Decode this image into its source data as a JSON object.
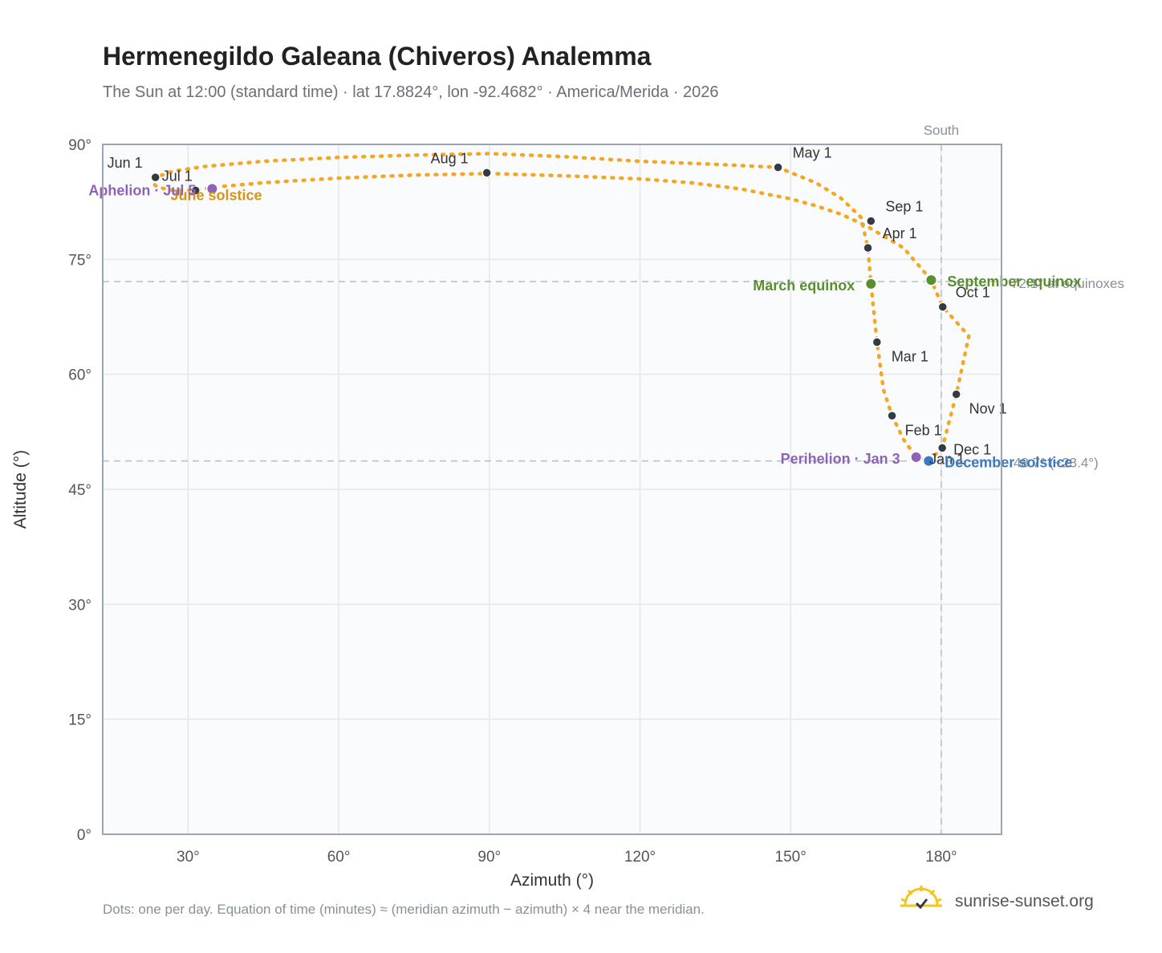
{
  "title": "Hermenegildo Galeana (Chiveros) Analemma",
  "subtitle": "The Sun at 12:00 (standard time) · lat 17.8824°, lon -92.4682° · America/Merida · 2026",
  "footnote": "Dots: one per day. Equation of time (minutes) ≈ (meridian azimuth − azimuth) × 4 near the meridian.",
  "brand": "sunrise-sunset.org",
  "colors": {
    "curve": "#f5a623",
    "month_marker": "#333a44",
    "equinox": "#5a8f2e",
    "solstice_june": "#d4951a",
    "solstice_december": "#3b7ac2",
    "apsis": "#8e63b4",
    "plot_bg": "#f9fbfd",
    "grid": "#e3e7ee",
    "reference_line": "#b4bfcc"
  },
  "chart_data": {
    "type": "scatter",
    "xlabel": "Azimuth (°)",
    "ylabel": "Altitude (°)",
    "xlim": [
      13,
      192
    ],
    "ylim": [
      0,
      90
    ],
    "xticks": [
      30,
      60,
      90,
      120,
      150,
      180
    ],
    "yticks": [
      0,
      15,
      30,
      45,
      60,
      75,
      90
    ],
    "x_tick_labels": [
      "30°",
      "60°",
      "90°",
      "120°",
      "150°",
      "180°"
    ],
    "y_tick_labels": [
      "0°",
      "15°",
      "30°",
      "45°",
      "60°",
      "75°",
      "90°"
    ],
    "grid": true,
    "meridian_azimuth": 180,
    "meridian_label": "South",
    "daily_path": [
      [
        177.5,
        48.7
      ],
      [
        180.2,
        50.4
      ],
      [
        183.0,
        57.4
      ],
      [
        185.5,
        65.0
      ],
      [
        180.3,
        68.8
      ],
      [
        178.0,
        72.3
      ],
      [
        172.5,
        76.5
      ],
      [
        165.0,
        79.4
      ],
      [
        160.0,
        80.9
      ],
      [
        155.0,
        82.0
      ],
      [
        150.0,
        82.9
      ],
      [
        140.0,
        84.2
      ],
      [
        130.0,
        85.0
      ],
      [
        120.0,
        85.5
      ],
      [
        105.0,
        85.9
      ],
      [
        90.0,
        86.2
      ],
      [
        75.0,
        86.0
      ],
      [
        60.0,
        85.6
      ],
      [
        45.0,
        85.0
      ],
      [
        35.0,
        84.4
      ],
      [
        31.5,
        84.0
      ],
      [
        27.0,
        84.0
      ],
      [
        24.0,
        84.4
      ],
      [
        22.8,
        85.0
      ],
      [
        23.5,
        85.7
      ],
      [
        27.0,
        86.5
      ],
      [
        33.0,
        87.1
      ],
      [
        45.0,
        87.8
      ],
      [
        60.0,
        88.3
      ],
      [
        75.0,
        88.6
      ],
      [
        90.0,
        88.8
      ],
      [
        105.0,
        88.4
      ],
      [
        120.0,
        87.8
      ],
      [
        135.0,
        87.4
      ],
      [
        147.5,
        87.0
      ],
      [
        155.0,
        85.0
      ],
      [
        160.0,
        83.0
      ],
      [
        164.0,
        80.5
      ],
      [
        165.4,
        76.5
      ],
      [
        166.0,
        71.8
      ],
      [
        167.2,
        64.2
      ],
      [
        168.5,
        58.0
      ],
      [
        170.2,
        54.6
      ],
      [
        172.5,
        51.5
      ],
      [
        175.0,
        49.2
      ],
      [
        177.5,
        48.7
      ]
    ],
    "month_markers": [
      {
        "label": "Jan 1",
        "az": 180.2,
        "alt": 50.4
      },
      {
        "label": "Feb 1",
        "az": 170.2,
        "alt": 54.6
      },
      {
        "label": "Mar 1",
        "az": 167.2,
        "alt": 64.2
      },
      {
        "label": "Apr 1",
        "az": 165.4,
        "alt": 76.5
      },
      {
        "label": "May 1",
        "az": 147.5,
        "alt": 87.0
      },
      {
        "label": "Jun 1",
        "az": 23.5,
        "alt": 85.7
      },
      {
        "label": "Jul 1",
        "az": 31.5,
        "alt": 84.0
      },
      {
        "label": "Aug 1",
        "az": 89.5,
        "alt": 86.3
      },
      {
        "label": "Sep 1",
        "az": 166.0,
        "alt": 80.0
      },
      {
        "label": "Oct 1",
        "az": 180.3,
        "alt": 68.8
      },
      {
        "label": "Nov 1",
        "az": 183.0,
        "alt": 57.4
      },
      {
        "label": "Dec 1",
        "az": 180.2,
        "alt": 50.4
      }
    ],
    "events": [
      {
        "label": "March equinox",
        "az": 166.0,
        "alt": 71.8,
        "kind": "equinox"
      },
      {
        "label": "September equinox",
        "az": 178.0,
        "alt": 72.3,
        "kind": "equinox"
      },
      {
        "label": "June solstice",
        "az": 26.5,
        "alt": 84.0,
        "kind": "solstice_june"
      },
      {
        "label": "December solstice",
        "az": 177.5,
        "alt": 48.7,
        "kind": "solstice_december"
      },
      {
        "label": "Perihelion · Jan 3",
        "az": 175.0,
        "alt": 49.2,
        "kind": "apsis"
      },
      {
        "label": "Aphelion · Jul 5",
        "az": 34.8,
        "alt": 84.2,
        "kind": "apsis"
      }
    ],
    "reference_lines": [
      {
        "alt": 72.1,
        "label": "72.1° at equinoxes"
      },
      {
        "alt": 48.7,
        "label": "48.7° (−23.4°)"
      }
    ]
  }
}
